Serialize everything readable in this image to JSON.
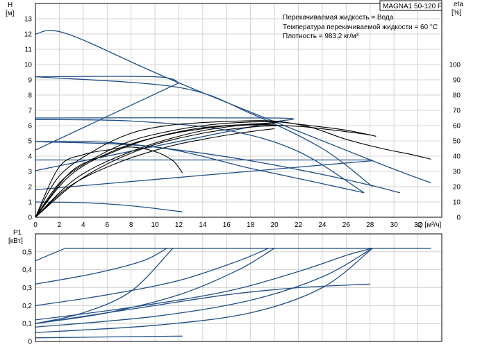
{
  "header": {
    "model": "MAGNA1 50-120 F",
    "liquid": "Перекачиваемая жидкость = Вода",
    "temperature": "Температура перекачиваемой жидкости = 60 °C",
    "density": "Плотность = 983.2 кг/м³"
  },
  "chart_data": [
    {
      "type": "line",
      "name": "head",
      "ylabel_line1": "H",
      "ylabel_line2": "[м]",
      "y2label_line1": "eta",
      "y2label_line2": "[%]",
      "xlabel": "Q [м³/ч]",
      "xlim": [
        0,
        34
      ],
      "ylim": [
        0,
        14
      ],
      "y2lim": [
        0,
        140
      ],
      "x_ticks": [
        0,
        2,
        4,
        6,
        8,
        10,
        12,
        14,
        16,
        18,
        20,
        22,
        24,
        26,
        28,
        30,
        32
      ],
      "y_ticks": [
        0,
        1,
        2,
        3,
        4,
        5,
        6,
        7,
        8,
        9,
        10,
        11,
        12,
        13
      ],
      "y2_ticks": [
        0,
        10,
        20,
        30,
        40,
        50,
        60,
        70,
        80,
        90,
        100
      ],
      "grid": true,
      "series": [
        {
          "kind": "pump",
          "points": [
            [
              0,
              12
            ],
            [
              2.7,
              12
            ],
            [
              12,
              8.8
            ],
            [
              28.2,
              3.7
            ],
            [
              33.1,
              2.25
            ]
          ]
        },
        {
          "kind": "pump",
          "points": [
            [
              0,
              9.2
            ],
            [
              10,
              9.2
            ],
            [
              12,
              8.8
            ]
          ]
        },
        {
          "kind": "pump",
          "points": [
            [
              0,
              6.5
            ],
            [
              20,
              6.5
            ],
            [
              20.4,
              6.3
            ]
          ]
        },
        {
          "kind": "pump",
          "points": [
            [
              0,
              3.75
            ],
            [
              28.2,
              3.75
            ]
          ]
        },
        {
          "kind": "pump",
          "points": [
            [
              0,
              4.4
            ],
            [
              12,
              8.8
            ]
          ]
        },
        {
          "kind": "pump",
          "points": [
            [
              0,
              3.05
            ],
            [
              20.4,
              6.3
            ]
          ]
        },
        {
          "kind": "pump",
          "points": [
            [
              0,
              1.8
            ],
            [
              28.2,
              3.7
            ]
          ]
        },
        {
          "kind": "pump",
          "points": [
            [
              0,
              4.95
            ],
            [
              6,
              4.9
            ],
            [
              12,
              4.4
            ],
            [
              18,
              3.7
            ],
            [
              24,
              2.8
            ],
            [
              28,
              2.1
            ],
            [
              30.5,
              1.6
            ]
          ]
        },
        {
          "kind": "pump",
          "points": [
            [
              0,
              6.4
            ],
            [
              8,
              6.3
            ],
            [
              16,
              5.7
            ],
            [
              22,
              4.3
            ],
            [
              27.5,
              1.6
            ]
          ]
        },
        {
          "kind": "pump",
          "points": [
            [
              0,
              4.95
            ],
            [
              10,
              4.6
            ],
            [
              18,
              3.2
            ],
            [
              24,
              2.2
            ],
            [
              27.5,
              1.6
            ]
          ]
        },
        {
          "kind": "pump",
          "points": [
            [
              0,
              1.0
            ],
            [
              4,
              0.95
            ],
            [
              8,
              0.75
            ],
            [
              12.3,
              0.35
            ]
          ]
        },
        {
          "kind": "pump",
          "points": [
            [
              0,
              9.2
            ],
            [
              12,
              8.5
            ],
            [
              18,
              6.8
            ],
            [
              24,
              4.5
            ],
            [
              28.2,
              2.0
            ]
          ]
        },
        {
          "kind": "eff",
          "points": [
            [
              0,
              0
            ],
            [
              2,
              2.7
            ],
            [
              5,
              4.4
            ],
            [
              8,
              5.5
            ],
            [
              11,
              6.0
            ],
            [
              14,
              6.2
            ],
            [
              17,
              6.3
            ],
            [
              20,
              6.3
            ],
            [
              23,
              5.9
            ],
            [
              26,
              5.1
            ],
            [
              29,
              4.5
            ],
            [
              31.5,
              4.1
            ],
            [
              33.1,
              3.8
            ]
          ]
        },
        {
          "kind": "eff",
          "points": [
            [
              0,
              0
            ],
            [
              2.2,
              2.4
            ],
            [
              5,
              3.9
            ],
            [
              8,
              5.0
            ],
            [
              11,
              5.6
            ],
            [
              14,
              6.0
            ],
            [
              17,
              6.2
            ],
            [
              20,
              6.25
            ],
            [
              23,
              6.0
            ],
            [
              26,
              5.7
            ],
            [
              28.5,
              5.3
            ]
          ]
        },
        {
          "kind": "eff",
          "points": [
            [
              0,
              0
            ],
            [
              3,
              2.8
            ],
            [
              7,
              4.5
            ],
            [
              11,
              5.4
            ],
            [
              15,
              5.9
            ],
            [
              18,
              6.1
            ],
            [
              20.3,
              6.2
            ]
          ]
        },
        {
          "kind": "eff",
          "points": [
            [
              0,
              0
            ],
            [
              2,
              3.3
            ],
            [
              4,
              4.1
            ],
            [
              6,
              4.4
            ],
            [
              8,
              4.6
            ],
            [
              10,
              4.3
            ],
            [
              11.5,
              3.7
            ],
            [
              12.3,
              2.9
            ]
          ]
        },
        {
          "kind": "eff",
          "points": [
            [
              0,
              0
            ],
            [
              3,
              3.0
            ],
            [
              6,
              4.1
            ],
            [
              9,
              5.0
            ],
            [
              12,
              5.6
            ],
            [
              15,
              5.95
            ],
            [
              18,
              6.05
            ],
            [
              22,
              5.95
            ],
            [
              25,
              5.7
            ],
            [
              28,
              5.4
            ]
          ]
        },
        {
          "kind": "eff",
          "points": [
            [
              0,
              0
            ],
            [
              3.5,
              2.6
            ],
            [
              8,
              4.3
            ],
            [
              13,
              5.5
            ],
            [
              17,
              6.0
            ],
            [
              20,
              6.1
            ]
          ]
        },
        {
          "kind": "eff",
          "points": [
            [
              0,
              0
            ],
            [
              4,
              2.6
            ],
            [
              9,
              4.5
            ],
            [
              14,
              5.5
            ],
            [
              18,
              5.9
            ],
            [
              20.2,
              6.0
            ]
          ]
        },
        {
          "kind": "eff",
          "points": [
            [
              0,
              0
            ],
            [
              3,
              2.1
            ],
            [
              7,
              3.6
            ],
            [
              11,
              4.6
            ],
            [
              14,
              5.1
            ],
            [
              17,
              5.5
            ],
            [
              20,
              5.8
            ]
          ]
        }
      ]
    },
    {
      "type": "line",
      "name": "power",
      "ylabel_line1": "P1",
      "ylabel_line2": "[кВт]",
      "xlim": [
        0,
        34
      ],
      "ylim": [
        0,
        0.6
      ],
      "x_ticks": [
        0,
        2,
        4,
        6,
        8,
        10,
        12,
        14,
        16,
        18,
        20,
        22,
        24,
        26,
        28,
        30,
        32
      ],
      "y_ticks": [
        0,
        0.1,
        0.2,
        0.3,
        0.4,
        0.5
      ],
      "y_tick_labels": [
        "0",
        "0,1",
        "0,2",
        "0,3",
        "0,4",
        "0,5"
      ],
      "grid": true,
      "series": [
        {
          "kind": "pump",
          "points": [
            [
              2.5,
              0.52
            ],
            [
              33.1,
              0.52
            ]
          ]
        },
        {
          "kind": "pump",
          "points": [
            [
              0,
              0.45
            ],
            [
              2.5,
              0.52
            ]
          ]
        },
        {
          "kind": "pump",
          "points": [
            [
              0,
              0.32
            ],
            [
              5,
              0.38
            ],
            [
              9,
              0.45
            ],
            [
              11,
              0.52
            ]
          ]
        },
        {
          "kind": "pump",
          "points": [
            [
              0,
              0.2
            ],
            [
              6,
              0.26
            ],
            [
              12,
              0.34
            ],
            [
              17,
              0.45
            ],
            [
              19.5,
              0.52
            ]
          ]
        },
        {
          "kind": "pump",
          "points": [
            [
              0,
              0.12
            ],
            [
              8,
              0.19
            ],
            [
              16,
              0.28
            ],
            [
              22,
              0.39
            ],
            [
              26,
              0.48
            ],
            [
              28.2,
              0.52
            ]
          ]
        },
        {
          "kind": "pump",
          "points": [
            [
              0,
              0.1
            ],
            [
              4,
              0.16
            ],
            [
              8,
              0.28
            ],
            [
              11.5,
              0.52
            ]
          ]
        },
        {
          "kind": "pump",
          "points": [
            [
              0,
              0.1
            ],
            [
              6,
              0.16
            ],
            [
              12,
              0.26
            ],
            [
              17,
              0.4
            ],
            [
              20,
              0.52
            ]
          ]
        },
        {
          "kind": "pump",
          "points": [
            [
              0,
              0.08
            ],
            [
              10,
              0.14
            ],
            [
              18,
              0.23
            ],
            [
              24,
              0.36
            ],
            [
              28.2,
              0.52
            ]
          ]
        },
        {
          "kind": "pump",
          "points": [
            [
              0,
              0.05
            ],
            [
              10,
              0.09
            ],
            [
              18,
              0.16
            ],
            [
              24,
              0.3
            ],
            [
              28.2,
              0.52
            ]
          ]
        },
        {
          "kind": "pump",
          "points": [
            [
              0,
              0.1
            ],
            [
              8,
              0.18
            ],
            [
              16,
              0.26
            ],
            [
              22,
              0.3
            ],
            [
              28,
              0.32
            ]
          ]
        },
        {
          "kind": "pump",
          "points": [
            [
              0,
              0.02
            ],
            [
              6,
              0.025
            ],
            [
              12.3,
              0.03
            ]
          ]
        }
      ]
    }
  ]
}
